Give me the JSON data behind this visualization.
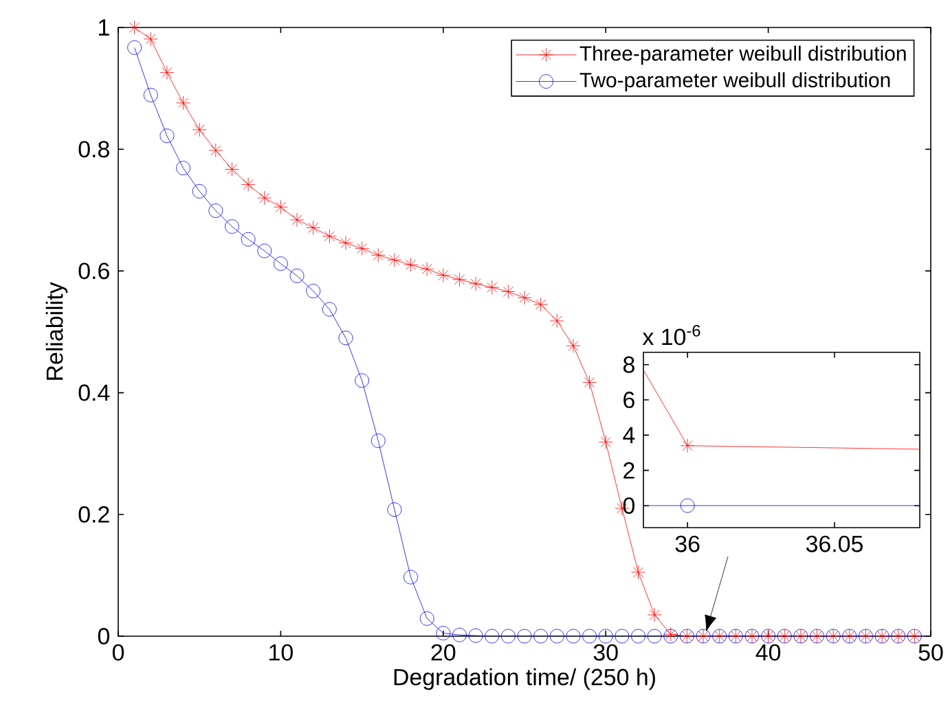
{
  "chart_data": [
    {
      "type": "line",
      "xlabel": "Degradation time/ (250 h)",
      "ylabel": "Reliability",
      "x": [
        1,
        2,
        3,
        4,
        5,
        6,
        7,
        8,
        9,
        10,
        11,
        12,
        13,
        14,
        15,
        16,
        17,
        18,
        19,
        20,
        21,
        22,
        23,
        24,
        25,
        26,
        27,
        28,
        29,
        30,
        31,
        32,
        33,
        34,
        35,
        36,
        37,
        38,
        39,
        40,
        41,
        42,
        43,
        44,
        45,
        46,
        47,
        48,
        49,
        50
      ],
      "series": [
        {
          "name": "Three-parameter weibull distribution",
          "color": "#ff0000",
          "marker": "cross",
          "values": [
            1.0,
            0.981,
            0.926,
            0.876,
            0.832,
            0.798,
            0.767,
            0.742,
            0.72,
            0.705,
            0.684,
            0.671,
            0.657,
            0.646,
            0.637,
            0.626,
            0.618,
            0.61,
            0.603,
            0.593,
            0.586,
            0.579,
            0.573,
            0.566,
            0.556,
            0.545,
            0.518,
            0.477,
            0.417,
            0.319,
            0.21,
            0.105,
            0.035,
            0.003,
            0,
            0,
            0,
            0,
            0,
            0,
            0,
            0,
            0,
            0,
            0,
            0,
            0,
            0,
            0,
            0
          ]
        },
        {
          "name": "Two-parameter weibull distribution",
          "color": "#0000ff",
          "marker": "circle",
          "values": [
            0.967,
            0.889,
            0.822,
            0.769,
            0.731,
            0.699,
            0.673,
            0.652,
            0.633,
            0.612,
            0.592,
            0.567,
            0.537,
            0.49,
            0.42,
            0.321,
            0.208,
            0.097,
            0.029,
            0.005,
            0.002,
            0.001,
            0,
            0,
            0,
            0,
            0,
            0,
            0,
            0,
            0,
            0,
            0,
            0,
            0,
            0,
            0,
            0,
            0,
            0,
            0,
            0,
            0,
            0,
            0,
            0,
            0,
            0,
            0,
            0
          ]
        }
      ],
      "xlim": [
        0,
        50
      ],
      "ylim": [
        0,
        1
      ],
      "xticks": [
        0,
        10,
        20,
        30,
        40,
        50
      ],
      "yticks": [
        0,
        0.2,
        0.4,
        0.6,
        0.8,
        1
      ],
      "legend": "top right"
    },
    {
      "type": "line",
      "annotations": [
        "x 10$^{-6}$"
      ],
      "series": [
        {
          "color": "#ff0000",
          "marker": "none",
          "x": [
            35.985,
            36,
            36.079
          ],
          "values": [
            7.7,
            3.4,
            3.2
          ]
        },
        {
          "color": "#0000ff",
          "marker": "none",
          "x": [
            35.985,
            36,
            36.079
          ],
          "values": [
            0,
            0,
            0
          ]
        },
        {
          "type": "scatter",
          "color": "#ff0000",
          "marker": "cross",
          "x": [
            36
          ],
          "values": [
            3.4
          ]
        },
        {
          "type": "scatter",
          "color": "#0000ff",
          "marker": "circle",
          "x": [
            36
          ],
          "values": [
            0
          ]
        }
      ],
      "xlim": [
        35.985,
        36.079
      ],
      "ylim": [
        -1.25,
        8.7
      ],
      "xticks": [
        36,
        36.05
      ],
      "yticks": [
        0,
        2,
        4,
        6,
        8
      ]
    }
  ]
}
